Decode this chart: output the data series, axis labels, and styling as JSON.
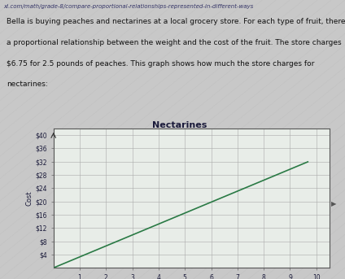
{
  "title": "Nectarines",
  "ylabel": "Cost",
  "xlabel": "",
  "ytick_labels": [
    "$4",
    "$8",
    "$12",
    "$16",
    "$20",
    "$24",
    "$28",
    "$32",
    "$36",
    "$40"
  ],
  "ytick_values": [
    4,
    8,
    12,
    16,
    20,
    24,
    28,
    32,
    36,
    40
  ],
  "ylim": [
    0,
    42
  ],
  "xlim": [
    0,
    10.5
  ],
  "xtick_values": [
    1,
    2,
    3,
    4,
    5,
    6,
    7,
    8,
    9,
    10
  ],
  "line_x": [
    0,
    9.7
  ],
  "line_y": [
    0,
    32.0
  ],
  "line_color": "#2a7a45",
  "line_width": 1.2,
  "bg_color": "#c8c8c8",
  "paper_color": "#d8d8d8",
  "plot_bg": "#e8ede8",
  "grid_color": "#aaaaaa",
  "text_color": "#1a1a3a",
  "title_fontsize": 8,
  "label_fontsize": 6,
  "tick_fontsize": 5.5,
  "para_fontsize": 6.5,
  "url_fontsize": 5,
  "paragraph_text": "Bella is buying peaches and nectarines at a local grocery store. For each type of fruit, there is\na proportional relationship between the weight and the cost of the fruit. The store charges\n$6.75 for 2.5 pounds of peaches. This graph shows how much the store charges for\nnectarines:",
  "url_text": "xl.com/math/grade-8/compare-proportional-relationships-represented-in-different-ways"
}
